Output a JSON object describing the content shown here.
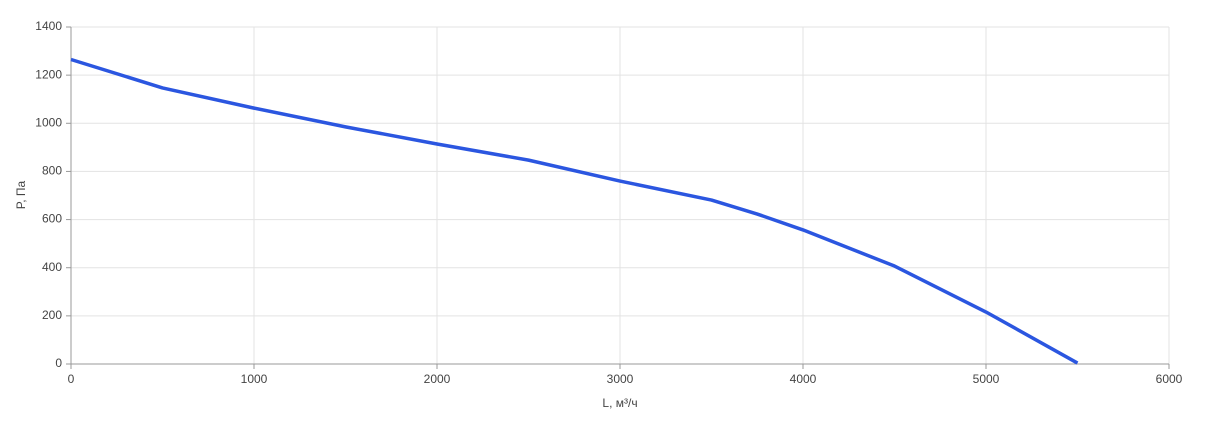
{
  "chart_data": {
    "type": "line",
    "x_label": "L, м³/ч",
    "y_label": "P, Па",
    "x": [
      0,
      500,
      1000,
      1500,
      2000,
      2500,
      3000,
      3500,
      3750,
      4000,
      4500,
      5000,
      5500
    ],
    "series": [
      {
        "color": "#2b56e0",
        "values": [
          1265,
          1147,
          1063,
          985,
          914,
          847,
          760,
          681,
          623,
          557,
          407,
          216,
          4
        ]
      }
    ],
    "xlim": [
      0,
      6000
    ],
    "xticks": [
      0,
      1000,
      2000,
      3000,
      4000,
      5000,
      6000
    ],
    "ylim": [
      0,
      1400
    ],
    "yticks": [
      0,
      200,
      400,
      600,
      800,
      1000,
      1200,
      1400
    ],
    "grid": true
  }
}
